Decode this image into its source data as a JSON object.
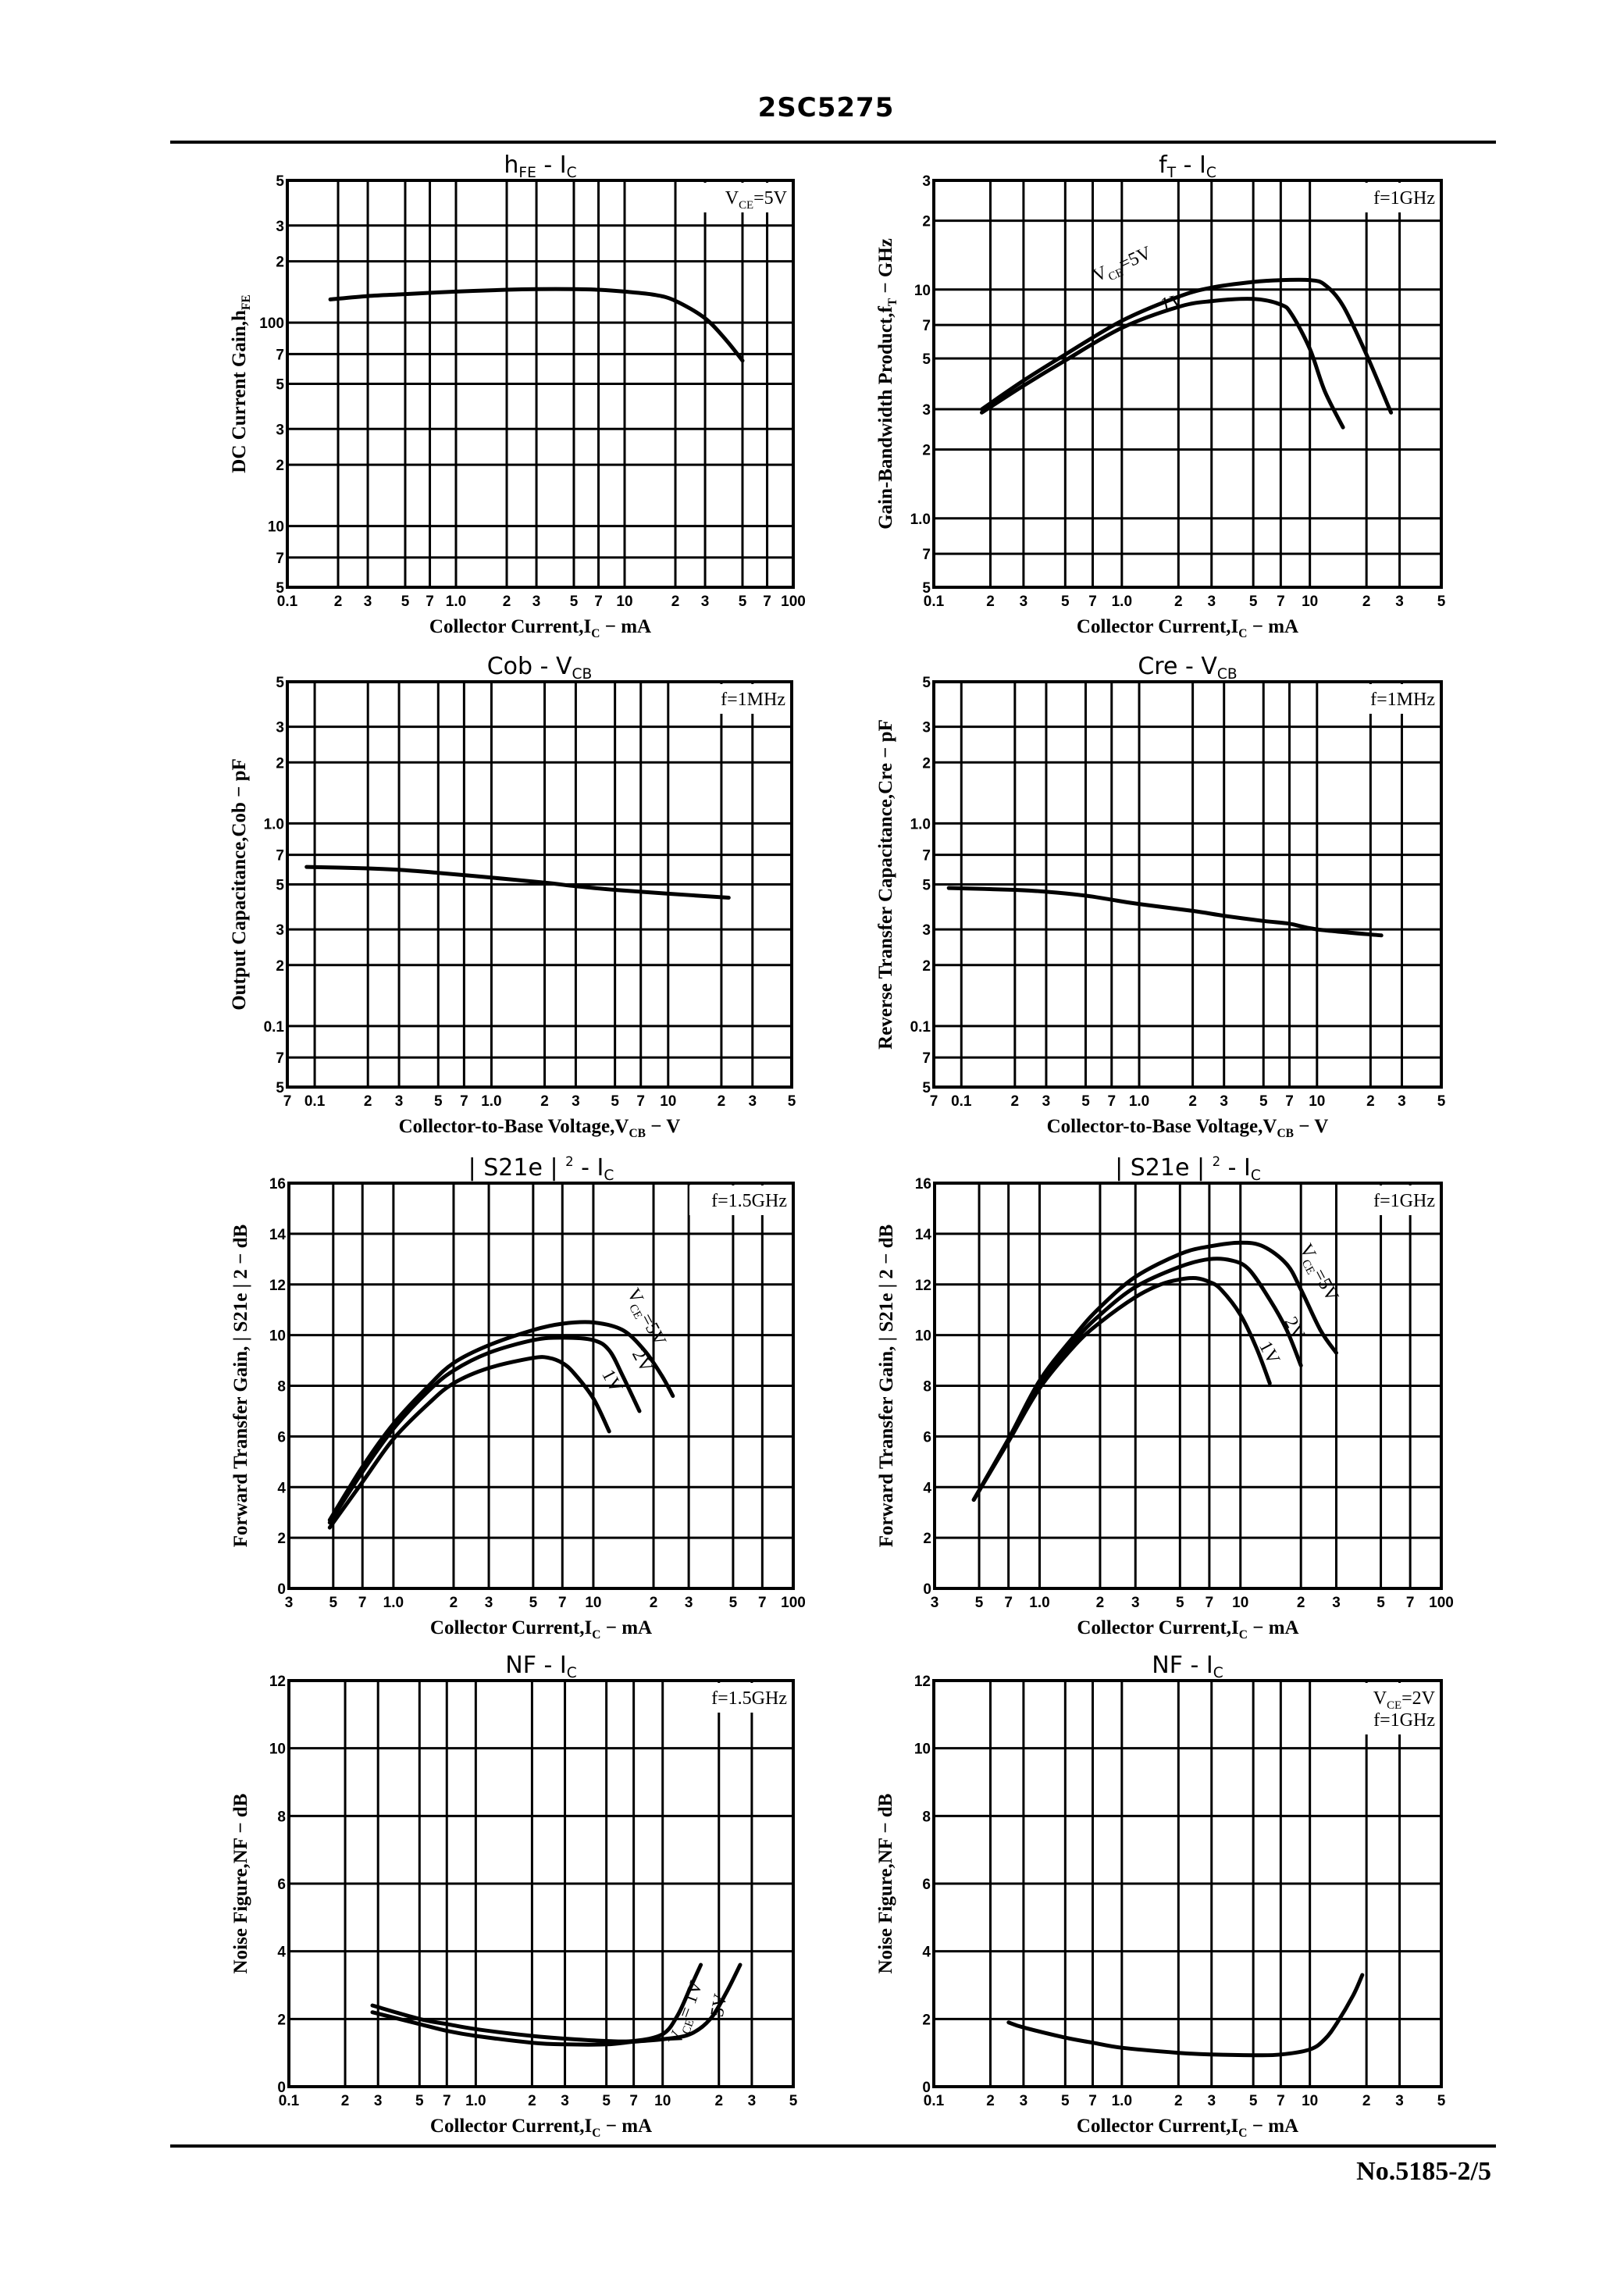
{
  "header": {
    "title": "2SC5275"
  },
  "footer": {
    "doc_number": "No.5185-2/5"
  },
  "chart_data": [
    {
      "id": "hfe",
      "type": "line",
      "title": "hFE - IC",
      "title_main": "h",
      "title_sub1": "FE",
      "title_mid": " - I",
      "title_sub2": "C",
      "xlabel": "Collector Current,IC − mA",
      "ylabel": "DC Current Gain,hFE",
      "xscale": "log",
      "yscale": "log",
      "xlim": [
        0.1,
        100
      ],
      "ylim": [
        5,
        500
      ],
      "xticks": [
        0.1,
        0.2,
        0.3,
        0.5,
        0.7,
        1,
        2,
        3,
        5,
        7,
        10,
        20,
        30,
        50,
        70,
        100
      ],
      "xtick_labels": [
        "0.1",
        "2",
        "3",
        "5",
        "7",
        "1.0",
        "2",
        "3",
        "5",
        "7",
        "10",
        "2",
        "3",
        "5",
        "7",
        "100"
      ],
      "yticks": [
        5,
        7,
        10,
        20,
        30,
        50,
        70,
        100,
        200,
        300,
        500
      ],
      "ytick_labels": [
        "5",
        "7",
        "10",
        "2",
        "3",
        "5",
        "7",
        "100",
        "2",
        "3",
        "5"
      ],
      "conditions": [
        "VCE=5V"
      ],
      "grid": true,
      "series": [
        {
          "name": "VCE=5V",
          "x": [
            0.18,
            0.3,
            0.5,
            1,
            2,
            3,
            5,
            7,
            10,
            15,
            20,
            30,
            40,
            50
          ],
          "y": [
            130,
            135,
            138,
            142,
            145,
            146,
            146,
            145,
            142,
            137,
            128,
            105,
            82,
            65
          ]
        }
      ]
    },
    {
      "id": "ft",
      "type": "line",
      "title": "fT - IC",
      "title_main": "f",
      "title_sub1": "T",
      "title_mid": " - I",
      "title_sub2": "C",
      "xlabel": "Collector Current,IC − mA",
      "ylabel": "Gain-Bandwidth Product,fT − GHz",
      "xscale": "log",
      "yscale": "log",
      "xlim": [
        0.1,
        50
      ],
      "ylim": [
        0.5,
        30
      ],
      "xticks": [
        0.1,
        0.2,
        0.3,
        0.5,
        0.7,
        1,
        2,
        3,
        5,
        7,
        10,
        20,
        30,
        50
      ],
      "xtick_labels": [
        "0.1",
        "2",
        "3",
        "5",
        "7",
        "1.0",
        "2",
        "3",
        "5",
        "7",
        "10",
        "2",
        "3",
        "5"
      ],
      "yticks": [
        0.5,
        0.7,
        1,
        2,
        3,
        5,
        7,
        10,
        20,
        30
      ],
      "ytick_labels": [
        "5",
        "7",
        "1.0",
        "2",
        "3",
        "5",
        "7",
        "10",
        "2",
        "3"
      ],
      "conditions": [
        "f=1GHz"
      ],
      "grid": true,
      "series": [
        {
          "name": "VCE=5V",
          "x": [
            0.18,
            0.3,
            0.5,
            1,
            2,
            3,
            5,
            7,
            10,
            12,
            15,
            20,
            27
          ],
          "y": [
            3.0,
            4.0,
            5.2,
            7.3,
            9.3,
            10.2,
            10.8,
            11.0,
            11.0,
            10.5,
            8.5,
            5.2,
            2.9
          ]
        },
        {
          "name": "1V",
          "x": [
            0.18,
            0.3,
            0.5,
            1,
            2,
            3,
            5,
            7,
            8,
            10,
            12,
            15
          ],
          "y": [
            2.9,
            3.8,
            4.9,
            6.8,
            8.4,
            8.9,
            9.1,
            8.6,
            7.8,
            5.5,
            3.6,
            2.5
          ]
        }
      ],
      "annotations": [
        "VCE=5V",
        "1V"
      ]
    },
    {
      "id": "cob",
      "type": "line",
      "title": "Cob - VCB",
      "title_main": "Cob",
      "title_sub1": "",
      "title_mid": " - V",
      "title_sub2": "CB",
      "xlabel": "Collector-to-Base Voltage,VCB − V",
      "ylabel": "Output Capacitance,Cob − pF",
      "xscale": "log",
      "yscale": "log",
      "xlim": [
        0.07,
        50
      ],
      "ylim": [
        0.05,
        5
      ],
      "xticks": [
        0.07,
        0.1,
        0.2,
        0.3,
        0.5,
        0.7,
        1,
        2,
        3,
        5,
        7,
        10,
        20,
        30,
        50
      ],
      "xtick_labels": [
        "7",
        "0.1",
        "2",
        "3",
        "5",
        "7",
        "1.0",
        "2",
        "3",
        "5",
        "7",
        "10",
        "2",
        "3",
        "5"
      ],
      "yticks": [
        0.05,
        0.07,
        0.1,
        0.2,
        0.3,
        0.5,
        0.7,
        1,
        2,
        3,
        5
      ],
      "ytick_labels": [
        "5",
        "7",
        "0.1",
        "2",
        "3",
        "5",
        "7",
        "1.0",
        "2",
        "3",
        "5"
      ],
      "conditions": [
        "f=1MHz"
      ],
      "grid": true,
      "series": [
        {
          "name": "Cob",
          "x": [
            0.09,
            0.2,
            0.3,
            0.5,
            1,
            2,
            3,
            5,
            10,
            22
          ],
          "y": [
            0.61,
            0.6,
            0.59,
            0.57,
            0.54,
            0.51,
            0.49,
            0.47,
            0.45,
            0.43
          ]
        }
      ]
    },
    {
      "id": "cre",
      "type": "line",
      "title": "Cre - VCB",
      "title_main": "Cre",
      "title_sub1": "",
      "title_mid": " - V",
      "title_sub2": "CB",
      "xlabel": "Collector-to-Base Voltage,VCB − V",
      "ylabel": "Reverse Transfer Capacitance,Cre − pF",
      "xscale": "log",
      "yscale": "log",
      "xlim": [
        0.07,
        50
      ],
      "ylim": [
        0.05,
        5
      ],
      "xticks": [
        0.07,
        0.1,
        0.2,
        0.3,
        0.5,
        0.7,
        1,
        2,
        3,
        5,
        7,
        10,
        20,
        30,
        50
      ],
      "xtick_labels": [
        "7",
        "0.1",
        "2",
        "3",
        "5",
        "7",
        "1.0",
        "2",
        "3",
        "5",
        "7",
        "10",
        "2",
        "3",
        "5"
      ],
      "yticks": [
        0.05,
        0.07,
        0.1,
        0.2,
        0.3,
        0.5,
        0.7,
        1,
        2,
        3,
        5
      ],
      "ytick_labels": [
        "5",
        "7",
        "0.1",
        "2",
        "3",
        "5",
        "7",
        "1.0",
        "2",
        "3",
        "5"
      ],
      "conditions": [
        "f=1MHz"
      ],
      "grid": true,
      "series": [
        {
          "name": "Cre",
          "x": [
            0.085,
            0.2,
            0.3,
            0.5,
            0.7,
            1,
            2,
            3,
            5,
            7,
            10,
            23
          ],
          "y": [
            0.48,
            0.47,
            0.46,
            0.44,
            0.42,
            0.4,
            0.37,
            0.35,
            0.33,
            0.32,
            0.3,
            0.28
          ]
        }
      ]
    },
    {
      "id": "s21_15ghz",
      "type": "line",
      "title": "|S21e|2 - IC",
      "title_main": "| S21e | ",
      "title_sup": "2",
      "title_mid": "  -  I",
      "title_sub2": "C",
      "xlabel": "Collector Current,IC − mA",
      "ylabel": "Forward Transfer Gain, | S21e | 2 − dB",
      "xscale": "log",
      "yscale": "linear",
      "xlim": [
        0.3,
        100
      ],
      "ylim": [
        0,
        16
      ],
      "xticks": [
        0.3,
        0.5,
        0.7,
        1,
        2,
        3,
        5,
        7,
        10,
        20,
        30,
        50,
        70,
        100
      ],
      "xtick_labels": [
        "3",
        "5",
        "7",
        "1.0",
        "2",
        "3",
        "5",
        "7",
        "10",
        "2",
        "3",
        "5",
        "7",
        "100"
      ],
      "yticks": [
        0,
        2,
        4,
        6,
        8,
        10,
        12,
        14,
        16
      ],
      "ytick_labels": [
        "0",
        "2",
        "4",
        "6",
        "8",
        "10",
        "12",
        "14",
        "16"
      ],
      "conditions": [
        "f=1.5GHz"
      ],
      "grid": true,
      "series": [
        {
          "name": "VCE=5V",
          "x": [
            0.48,
            0.7,
            1,
            1.5,
            2,
            3,
            5,
            7,
            10,
            14,
            18,
            22,
            25
          ],
          "y": [
            2.7,
            4.8,
            6.5,
            8.0,
            8.9,
            9.6,
            10.2,
            10.45,
            10.5,
            10.2,
            9.4,
            8.4,
            7.6
          ]
        },
        {
          "name": "2V",
          "x": [
            0.48,
            0.7,
            1,
            1.5,
            2,
            3,
            5,
            7,
            10,
            12,
            14,
            17
          ],
          "y": [
            2.6,
            4.6,
            6.3,
            7.8,
            8.6,
            9.3,
            9.8,
            9.9,
            9.8,
            9.4,
            8.4,
            7.0
          ]
        },
        {
          "name": "1V",
          "x": [
            0.48,
            0.7,
            1,
            1.5,
            2,
            3,
            5,
            6,
            7,
            8,
            10,
            12
          ],
          "y": [
            2.4,
            4.2,
            5.9,
            7.3,
            8.1,
            8.7,
            9.1,
            9.1,
            8.9,
            8.5,
            7.5,
            6.2
          ]
        }
      ],
      "annotations": [
        "VCE=5V",
        "2V",
        "1V"
      ]
    },
    {
      "id": "s21_1ghz",
      "type": "line",
      "title": "|S21e|2 - IC",
      "title_main": "| S21e | ",
      "title_sup": "2",
      "title_mid": "  -  I",
      "title_sub2": "C",
      "xlabel": "Collector Current,IC − mA",
      "ylabel": "Forward Transfer Gain, | S21e | 2 − dB",
      "xscale": "log",
      "yscale": "linear",
      "xlim": [
        0.3,
        100
      ],
      "ylim": [
        0,
        16
      ],
      "xticks": [
        0.3,
        0.5,
        0.7,
        1,
        2,
        3,
        5,
        7,
        10,
        20,
        30,
        50,
        70,
        100
      ],
      "xtick_labels": [
        "3",
        "5",
        "7",
        "1.0",
        "2",
        "3",
        "5",
        "7",
        "10",
        "2",
        "3",
        "5",
        "7",
        "100"
      ],
      "yticks": [
        0,
        2,
        4,
        6,
        8,
        10,
        12,
        14,
        16
      ],
      "ytick_labels": [
        "0",
        "2",
        "4",
        "6",
        "8",
        "10",
        "12",
        "14",
        "16"
      ],
      "conditions": [
        "f=1GHz"
      ],
      "grid": true,
      "series": [
        {
          "name": "VCE=5V",
          "x": [
            0.47,
            0.7,
            1,
            1.5,
            2,
            3,
            5,
            7,
            10,
            13,
            17,
            20,
            25,
            30
          ],
          "y": [
            3.5,
            5.9,
            8.2,
            10.0,
            11.1,
            12.3,
            13.2,
            13.5,
            13.65,
            13.5,
            12.8,
            11.8,
            10.2,
            9.3
          ]
        },
        {
          "name": "2V",
          "x": [
            0.47,
            0.7,
            1,
            1.5,
            2,
            3,
            5,
            7,
            9,
            11,
            14,
            17,
            20
          ],
          "y": [
            3.5,
            5.9,
            8.1,
            9.8,
            10.8,
            11.9,
            12.7,
            13.0,
            12.95,
            12.6,
            11.4,
            10.2,
            8.8
          ]
        },
        {
          "name": "1V",
          "x": [
            0.47,
            0.7,
            1,
            1.5,
            2,
            3,
            4,
            5,
            6,
            7,
            8,
            10,
            12,
            14
          ],
          "y": [
            3.5,
            5.8,
            7.9,
            9.6,
            10.5,
            11.5,
            12.0,
            12.2,
            12.25,
            12.1,
            11.8,
            10.8,
            9.5,
            8.1
          ]
        }
      ],
      "annotations": [
        "VCE=5V",
        "2V",
        "1V"
      ]
    },
    {
      "id": "nf_15ghz",
      "type": "line",
      "title": "NF - IC",
      "title_main": "NF",
      "title_sub1": "",
      "title_mid": "  -  I",
      "title_sub2": "C",
      "xlabel": "Collector Current,IC − mA",
      "ylabel": "Noise Figure,NF − dB",
      "xscale": "log",
      "yscale": "linear",
      "xlim": [
        0.1,
        50
      ],
      "ylim": [
        0,
        12
      ],
      "xticks": [
        0.1,
        0.2,
        0.3,
        0.5,
        0.7,
        1,
        2,
        3,
        5,
        7,
        10,
        20,
        30,
        50
      ],
      "xtick_labels": [
        "0.1",
        "2",
        "3",
        "5",
        "7",
        "1.0",
        "2",
        "3",
        "5",
        "7",
        "10",
        "2",
        "3",
        "5"
      ],
      "yticks": [
        0,
        2,
        4,
        6,
        8,
        10,
        12
      ],
      "ytick_labels": [
        "0",
        "2",
        "4",
        "6",
        "8",
        "10",
        "12"
      ],
      "conditions": [
        "f=1.5GHz"
      ],
      "grid": true,
      "series": [
        {
          "name": "VCE=1V",
          "x": [
            0.28,
            0.5,
            0.7,
            1,
            2,
            3,
            5,
            7,
            10,
            12,
            14,
            16
          ],
          "y": [
            2.4,
            2.0,
            1.85,
            1.7,
            1.5,
            1.42,
            1.35,
            1.35,
            1.55,
            2.1,
            2.9,
            3.6
          ]
        },
        {
          "name": "5V",
          "x": [
            0.28,
            0.5,
            0.7,
            1,
            2,
            3,
            5,
            7,
            10,
            14,
            18,
            22,
            26
          ],
          "y": [
            2.2,
            1.85,
            1.65,
            1.5,
            1.3,
            1.25,
            1.25,
            1.33,
            1.4,
            1.55,
            2.0,
            2.8,
            3.6
          ]
        }
      ],
      "annotations": [
        "VCE=1V",
        "5V"
      ]
    },
    {
      "id": "nf_1ghz",
      "type": "line",
      "title": "NF - IC",
      "title_main": "NF",
      "title_sub1": "",
      "title_mid": "  -  I",
      "title_sub2": "C",
      "xlabel": "Collector Current,IC − mA",
      "ylabel": "Noise Figure,NF − dB",
      "xscale": "log",
      "yscale": "linear",
      "xlim": [
        0.1,
        50
      ],
      "ylim": [
        0,
        12
      ],
      "xticks": [
        0.1,
        0.2,
        0.3,
        0.5,
        0.7,
        1,
        2,
        3,
        5,
        7,
        10,
        20,
        30,
        50
      ],
      "xtick_labels": [
        "0.1",
        "2",
        "3",
        "5",
        "7",
        "1.0",
        "2",
        "3",
        "5",
        "7",
        "10",
        "2",
        "3",
        "5"
      ],
      "yticks": [
        0,
        2,
        4,
        6,
        8,
        10,
        12
      ],
      "ytick_labels": [
        "0",
        "2",
        "4",
        "6",
        "8",
        "10",
        "12"
      ],
      "conditions": [
        "VCE=2V",
        "f=1GHz"
      ],
      "grid": true,
      "series": [
        {
          "name": "VCE=2V",
          "x": [
            0.25,
            0.3,
            0.5,
            0.7,
            1,
            2,
            3,
            5,
            7,
            10,
            12,
            14,
            17,
            19
          ],
          "y": [
            1.9,
            1.75,
            1.45,
            1.3,
            1.15,
            1.0,
            0.95,
            0.93,
            0.95,
            1.1,
            1.4,
            1.9,
            2.7,
            3.3
          ]
        }
      ]
    }
  ]
}
